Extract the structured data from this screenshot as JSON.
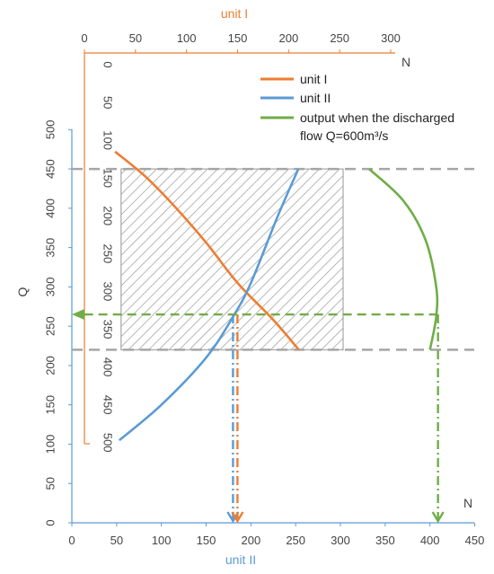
{
  "colors": {
    "unit_i": "#ED7D31",
    "unit_ii": "#5B9BD5",
    "output": "#70AD47",
    "reference": "#A6A6A6",
    "hatch": "#999999"
  },
  "chart_data": {
    "type": "line",
    "title": "",
    "top_axis": {
      "label": "unit I",
      "ticks": [
        0,
        50,
        100,
        150,
        200,
        250,
        300
      ],
      "range": [
        0,
        300
      ],
      "end_label": "N"
    },
    "inner_axis": {
      "ticks": [
        0,
        50,
        100,
        150,
        200,
        250,
        300,
        350,
        400,
        450,
        500
      ],
      "range": [
        0,
        500
      ],
      "direction": "downward",
      "color": "orange"
    },
    "bottom_axis": {
      "label": "unit II",
      "ticks": [
        0,
        50,
        100,
        150,
        200,
        250,
        300,
        350,
        400,
        450
      ],
      "range": [
        0,
        450
      ],
      "end_label": "N"
    },
    "left_axis": {
      "label": "Q",
      "ticks": [
        0,
        50,
        100,
        150,
        200,
        250,
        300,
        350,
        400,
        450,
        500
      ],
      "range": [
        0,
        500
      ]
    },
    "legend": {
      "placement": "top-right",
      "entries": [
        {
          "key": "unit_i",
          "text": "unit I"
        },
        {
          "key": "unit_ii",
          "text": "unit II"
        },
        {
          "key": "output",
          "text_line1": "output when the discharged",
          "text_line2": "flow Q=600m³/s"
        }
      ]
    },
    "series": [
      {
        "name": "unit I",
        "key": "unit_i",
        "axis": "unit I",
        "points": [
          [
            30,
            472
          ],
          [
            60,
            440
          ],
          [
            90,
            400
          ],
          [
            120,
            355
          ],
          [
            150,
            305
          ],
          [
            185,
            258
          ],
          [
            210,
            220
          ]
        ]
      },
      {
        "name": "unit II",
        "key": "unit_ii",
        "axis": "unit II",
        "points": [
          [
            53,
            105
          ],
          [
            100,
            150
          ],
          [
            150,
            210
          ],
          [
            180,
            262
          ],
          [
            200,
            305
          ],
          [
            230,
            390
          ],
          [
            253,
            450
          ]
        ]
      },
      {
        "name": "output when the discharged flow Q=600m³/s",
        "key": "output",
        "axis": "unit II",
        "points": [
          [
            332,
            450
          ],
          [
            370,
            410
          ],
          [
            395,
            360
          ],
          [
            407,
            300
          ],
          [
            407,
            262
          ],
          [
            400,
            220
          ]
        ]
      }
    ],
    "shaded_region": {
      "x_range_unit_ii": [
        55,
        303
      ],
      "q_range": [
        220,
        450
      ],
      "pattern": "diagonal hatch"
    },
    "reference_lines": {
      "q_values": [
        450,
        220
      ],
      "style": "grey dashed"
    },
    "operating_point": {
      "q": 265,
      "unit_i_n": 185,
      "unit_ii_n": 180,
      "total_n": 409
    }
  }
}
